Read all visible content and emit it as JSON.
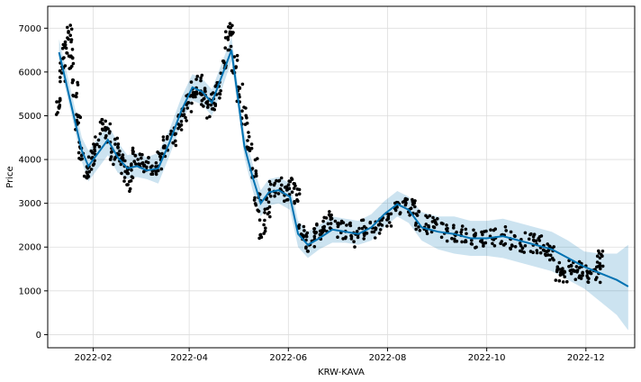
{
  "chart_data": {
    "type": "line",
    "title": "",
    "xlabel": "KRW-KAVA",
    "ylabel": "Price",
    "xlim": [
      "2022-01-04",
      "2022-12-31"
    ],
    "ylim": [
      -300,
      7500
    ],
    "grid": true,
    "x_ticks": [
      "2022-02-01",
      "2022-04-01",
      "2022-06-01",
      "2022-08-01",
      "2022-10-01",
      "2022-12-01"
    ],
    "x_tick_labels": [
      "2022-02",
      "2022-04",
      "2022-06",
      "2022-08",
      "2022-10",
      "2022-12"
    ],
    "y_ticks": [
      0,
      1000,
      2000,
      3000,
      4000,
      5000,
      6000,
      7000
    ],
    "y_tick_labels": [
      "0",
      "1000",
      "2000",
      "3000",
      "4000",
      "5000",
      "6000",
      "7000"
    ],
    "colors": {
      "forecast": "#0072B2",
      "interval": "#0072B2",
      "observed": "#000000",
      "grid": "#dddddd"
    },
    "series": [
      {
        "kind": "forecast",
        "x": [
          "2022-01-11",
          "2022-01-15",
          "2022-01-20",
          "2022-01-25",
          "2022-01-29",
          "2022-02-04",
          "2022-02-10",
          "2022-02-16",
          "2022-02-22",
          "2022-02-28",
          "2022-03-06",
          "2022-03-13",
          "2022-03-20",
          "2022-03-27",
          "2022-04-03",
          "2022-04-09",
          "2022-04-15",
          "2022-04-21",
          "2022-04-27",
          "2022-05-01",
          "2022-05-05",
          "2022-05-10",
          "2022-05-15",
          "2022-05-20",
          "2022-05-26",
          "2022-06-02",
          "2022-06-07",
          "2022-06-13",
          "2022-06-20",
          "2022-06-28",
          "2022-07-06",
          "2022-07-14",
          "2022-07-22",
          "2022-07-30",
          "2022-08-07",
          "2022-08-14",
          "2022-08-22",
          "2022-09-01",
          "2022-09-11",
          "2022-09-21",
          "2022-10-01",
          "2022-10-11",
          "2022-10-21",
          "2022-10-31",
          "2022-11-10",
          "2022-11-20",
          "2022-11-30",
          "2022-12-10",
          "2022-12-20",
          "2022-12-27"
        ],
        "values": [
          6450,
          5800,
          5000,
          4200,
          3850,
          4150,
          4450,
          4050,
          3800,
          3850,
          3750,
          3800,
          4400,
          5100,
          5650,
          5550,
          5300,
          5900,
          6500,
          5400,
          4300,
          3600,
          3000,
          3250,
          3300,
          3150,
          2300,
          2050,
          2200,
          2400,
          2350,
          2300,
          2450,
          2750,
          2980,
          2850,
          2450,
          2350,
          2300,
          2200,
          2200,
          2250,
          2150,
          2050,
          1950,
          1750,
          1550,
          1400,
          1250,
          1100
        ],
        "lower": [
          6250,
          5600,
          4800,
          3950,
          3500,
          3800,
          4100,
          3700,
          3550,
          3600,
          3550,
          3450,
          4100,
          4800,
          5350,
          5250,
          5000,
          5600,
          6250,
          5150,
          4050,
          3300,
          2700,
          2950,
          3000,
          2850,
          2000,
          1750,
          1950,
          2100,
          2100,
          2050,
          2150,
          2450,
          2700,
          2550,
          2150,
          1950,
          1850,
          1800,
          1800,
          1750,
          1650,
          1550,
          1450,
          1250,
          1050,
          750,
          450,
          100
        ],
        "upper": [
          6750,
          6100,
          5300,
          4500,
          4200,
          4500,
          4800,
          4400,
          4100,
          4150,
          4050,
          4150,
          4700,
          5400,
          5950,
          5850,
          5600,
          6200,
          6800,
          5700,
          4600,
          3900,
          3300,
          3550,
          3600,
          3450,
          2600,
          2350,
          2500,
          2700,
          2650,
          2600,
          2750,
          3050,
          3280,
          3150,
          2800,
          2700,
          2700,
          2600,
          2600,
          2650,
          2550,
          2450,
          2350,
          2150,
          1900,
          1850,
          1850,
          2050
        ]
      },
      {
        "kind": "observed",
        "x": [
          "2022-01-11",
          "2022-01-13",
          "2022-01-15",
          "2022-01-17",
          "2022-01-19",
          "2022-01-21",
          "2022-01-23",
          "2022-01-25",
          "2022-01-28",
          "2022-01-31",
          "2022-02-03",
          "2022-02-07",
          "2022-02-10",
          "2022-02-13",
          "2022-02-16",
          "2022-02-19",
          "2022-02-22",
          "2022-02-24",
          "2022-02-27",
          "2022-03-02",
          "2022-03-06",
          "2022-03-10",
          "2022-03-14",
          "2022-03-18",
          "2022-03-22",
          "2022-03-26",
          "2022-03-29",
          "2022-04-01",
          "2022-04-04",
          "2022-04-07",
          "2022-04-10",
          "2022-04-13",
          "2022-04-16",
          "2022-04-19",
          "2022-04-22",
          "2022-04-25",
          "2022-04-27",
          "2022-04-29",
          "2022-05-02",
          "2022-05-05",
          "2022-05-08",
          "2022-05-11",
          "2022-05-13",
          "2022-05-16",
          "2022-05-19",
          "2022-05-22",
          "2022-05-26",
          "2022-05-30",
          "2022-06-03",
          "2022-06-06",
          "2022-06-09",
          "2022-06-12",
          "2022-06-16",
          "2022-06-20",
          "2022-06-24",
          "2022-06-28",
          "2022-07-03",
          "2022-07-08",
          "2022-07-13",
          "2022-07-18",
          "2022-07-23",
          "2022-07-28",
          "2022-08-02",
          "2022-08-07",
          "2022-08-12",
          "2022-08-16",
          "2022-08-20",
          "2022-08-25",
          "2022-08-30",
          "2022-09-05",
          "2022-09-11",
          "2022-09-17",
          "2022-09-23",
          "2022-09-29",
          "2022-10-05",
          "2022-10-11",
          "2022-10-17",
          "2022-10-23",
          "2022-10-29",
          "2022-11-02",
          "2022-11-06",
          "2022-11-10",
          "2022-11-14",
          "2022-11-18",
          "2022-11-22",
          "2022-11-26",
          "2022-11-30",
          "2022-12-04",
          "2022-12-08",
          "2022-12-10"
        ],
        "values": [
          5200,
          6000,
          6500,
          6900,
          6300,
          5600,
          4800,
          4200,
          3800,
          4000,
          4300,
          4700,
          4600,
          4100,
          4300,
          3900,
          3500,
          3700,
          4100,
          4000,
          3850,
          3800,
          3950,
          4300,
          4500,
          4900,
          5000,
          5300,
          5600,
          5700,
          5400,
          5150,
          5350,
          5600,
          6100,
          6700,
          6900,
          6200,
          5500,
          5000,
          4400,
          3800,
          3000,
          2400,
          2900,
          3300,
          3400,
          3200,
          3350,
          3200,
          2300,
          2100,
          2200,
          2400,
          2500,
          2600,
          2400,
          2350,
          2200,
          2400,
          2350,
          2500,
          2700,
          2850,
          3000,
          2900,
          2600,
          2500,
          2450,
          2350,
          2300,
          2250,
          2200,
          2150,
          2200,
          2250,
          2150,
          2100,
          2100,
          2050,
          2000,
          1800,
          1450,
          1300,
          1600,
          1450,
          1400,
          1380,
          1350,
          1700
        ]
      }
    ]
  }
}
